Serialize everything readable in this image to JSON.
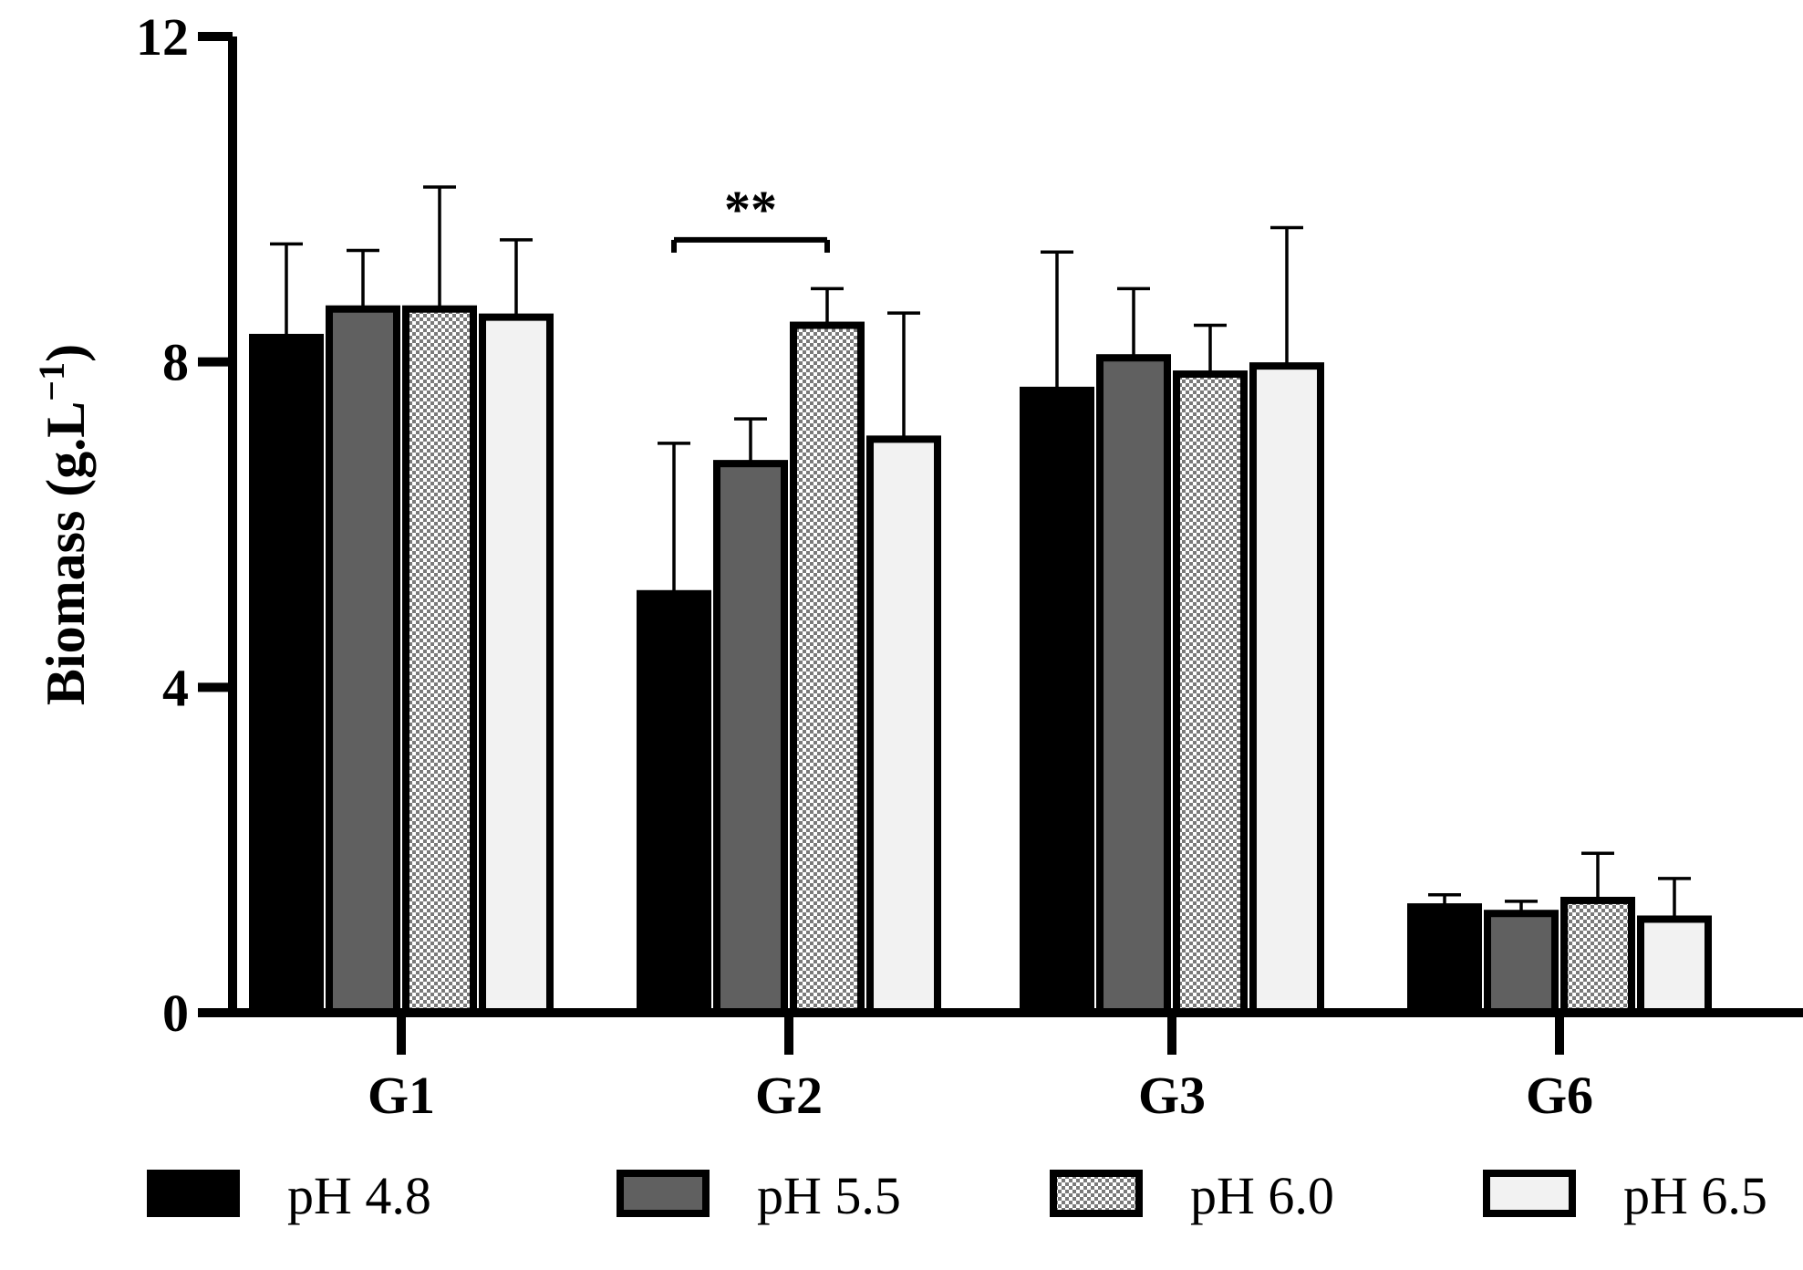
{
  "chart_data": {
    "type": "bar",
    "title": "",
    "xlabel": "",
    "ylabel": "Biomass (g.L",
    "ylabel_superscript": "−1",
    "ylabel_close": ")",
    "ylim": [
      0,
      12
    ],
    "yticks": [
      "0",
      "4",
      "8",
      "12"
    ],
    "categories": [
      "G1",
      "G2",
      "G3",
      "G6"
    ],
    "series": [
      {
        "name": "pH 4.8",
        "fill": "#000000",
        "pattern": "solid",
        "values": [
          8.3,
          5.15,
          7.65,
          1.3
        ],
        "errors": [
          1.15,
          1.85,
          1.7,
          0.15
        ]
      },
      {
        "name": "pH 5.5",
        "fill": "#606060",
        "pattern": "solid",
        "values": [
          8.65,
          6.75,
          8.05,
          1.22
        ],
        "errors": [
          0.72,
          0.55,
          0.85,
          0.15
        ]
      },
      {
        "name": "pH 6.0",
        "fill": "checker",
        "pattern": "checker",
        "values": [
          8.65,
          8.45,
          7.85,
          1.38
        ],
        "errors": [
          1.5,
          0.45,
          0.6,
          0.58
        ]
      },
      {
        "name": "pH 6.5",
        "fill": "#f2f2f2",
        "pattern": "solid",
        "values": [
          8.55,
          7.05,
          7.95,
          1.15
        ],
        "errors": [
          0.95,
          1.55,
          1.7,
          0.5
        ]
      }
    ],
    "annotations": [
      {
        "text": "**",
        "category": "G2",
        "from_series": 0,
        "to_series": 2,
        "y": 9.5
      }
    ],
    "legend_position": "bottom"
  }
}
